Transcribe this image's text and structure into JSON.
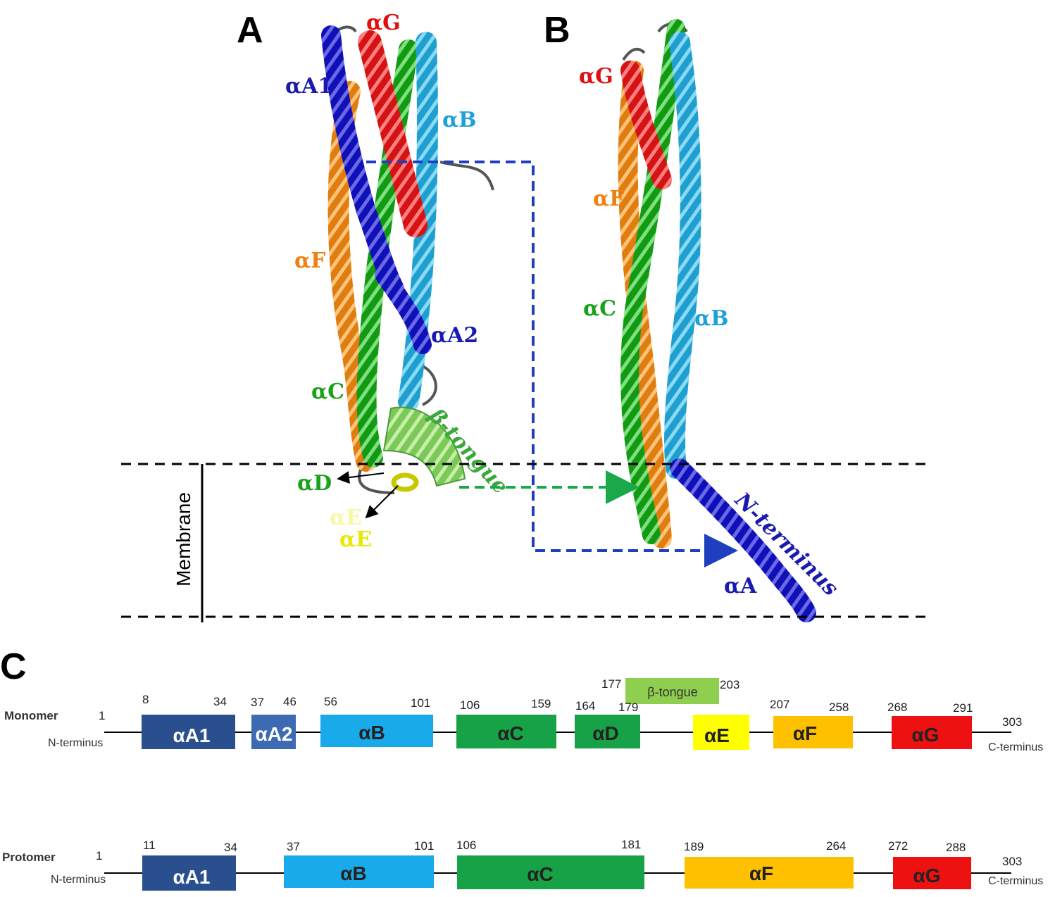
{
  "panels": {
    "a": "A",
    "b": "B",
    "c": "C"
  },
  "structure_a": {
    "labels": {
      "aG": "αG",
      "aA1": "αA1",
      "aB": "αB",
      "aF": "αF",
      "aA2": "αA2",
      "aC": "αC",
      "aD": "αD",
      "aE_faint": "αE",
      "aE": "αE",
      "tongue": "β-tongue"
    }
  },
  "structure_b": {
    "labels": {
      "aG": "αG",
      "aF": "αF",
      "aC": "αC",
      "aB": "αB",
      "nterm": "N-terminus",
      "aA": "αA"
    }
  },
  "membrane_label": "Membrane",
  "colors": {
    "aA1": "#2a4f8f",
    "aA2": "#3d6bb3",
    "aB": "#18aaea",
    "aC": "#17a248",
    "aD": "#17a248",
    "aE": "#ffff00",
    "aF": "#ffc000",
    "aG": "#ee1111",
    "tongue": "#8fcf4f",
    "helix_blue": "#1010b8",
    "helix_cyan": "#2aa8d8",
    "helix_orange": "#f08a1a",
    "helix_red": "#d81818",
    "helix_green": "#1aa31a"
  },
  "monomer": {
    "title": "Monomer",
    "start": "1",
    "end": "303",
    "nterm": "N-terminus",
    "cterm": "C-terminus",
    "segments": [
      {
        "label": "αA1",
        "start": "8",
        "end": "34"
      },
      {
        "label": "αA2",
        "start": "37",
        "end": "46"
      },
      {
        "label": "αB",
        "start": "56",
        "end": "101"
      },
      {
        "label": "αC",
        "start": "106",
        "end": "159"
      },
      {
        "label": "αD",
        "start": "164",
        "end": "179"
      },
      {
        "label": "αE",
        "start": "",
        "end": ""
      },
      {
        "label": "αF",
        "start": "207",
        "end": "258"
      },
      {
        "label": "αG",
        "start": "268",
        "end": "291"
      }
    ],
    "tongue": {
      "label": "β-tongue",
      "start": "177",
      "end": "203"
    }
  },
  "protomer": {
    "title": "Protomer",
    "start": "1",
    "end": "303",
    "nterm": "N-terminus",
    "cterm": "C-terminus",
    "segments": [
      {
        "label": "αA1",
        "start": "11",
        "end": "34"
      },
      {
        "label": "αB",
        "start": "37",
        "end": "101"
      },
      {
        "label": "αC",
        "start": "106",
        "end": "181"
      },
      {
        "label": "αF",
        "start": "189",
        "end": "264"
      },
      {
        "label": "αG",
        "start": "272",
        "end": "288"
      }
    ]
  }
}
